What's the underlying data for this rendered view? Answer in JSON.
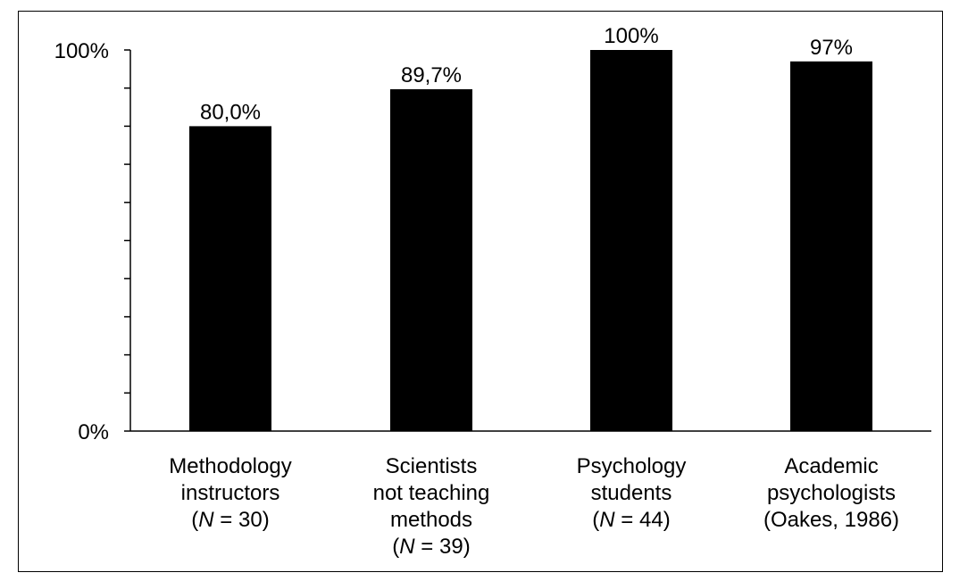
{
  "chart_data": {
    "type": "bar",
    "categories": [
      [
        "Methodology",
        "instructors",
        "(N = 30)"
      ],
      [
        "Scientists",
        "not teaching",
        "methods",
        "(N = 39)"
      ],
      [
        "Psychology",
        "students",
        "(N = 44)"
      ],
      [
        "Academic",
        "psychologists",
        "(Oakes, 1986)"
      ]
    ],
    "values": [
      80.0,
      89.7,
      100,
      97
    ],
    "data_labels": [
      "80,0%",
      "89,7%",
      "100%",
      "97%"
    ],
    "ylim": [
      0,
      100
    ],
    "ytick_labels": [
      "0%",
      "100%"
    ],
    "minor_ticks": 10,
    "bar_color": "#000000"
  }
}
